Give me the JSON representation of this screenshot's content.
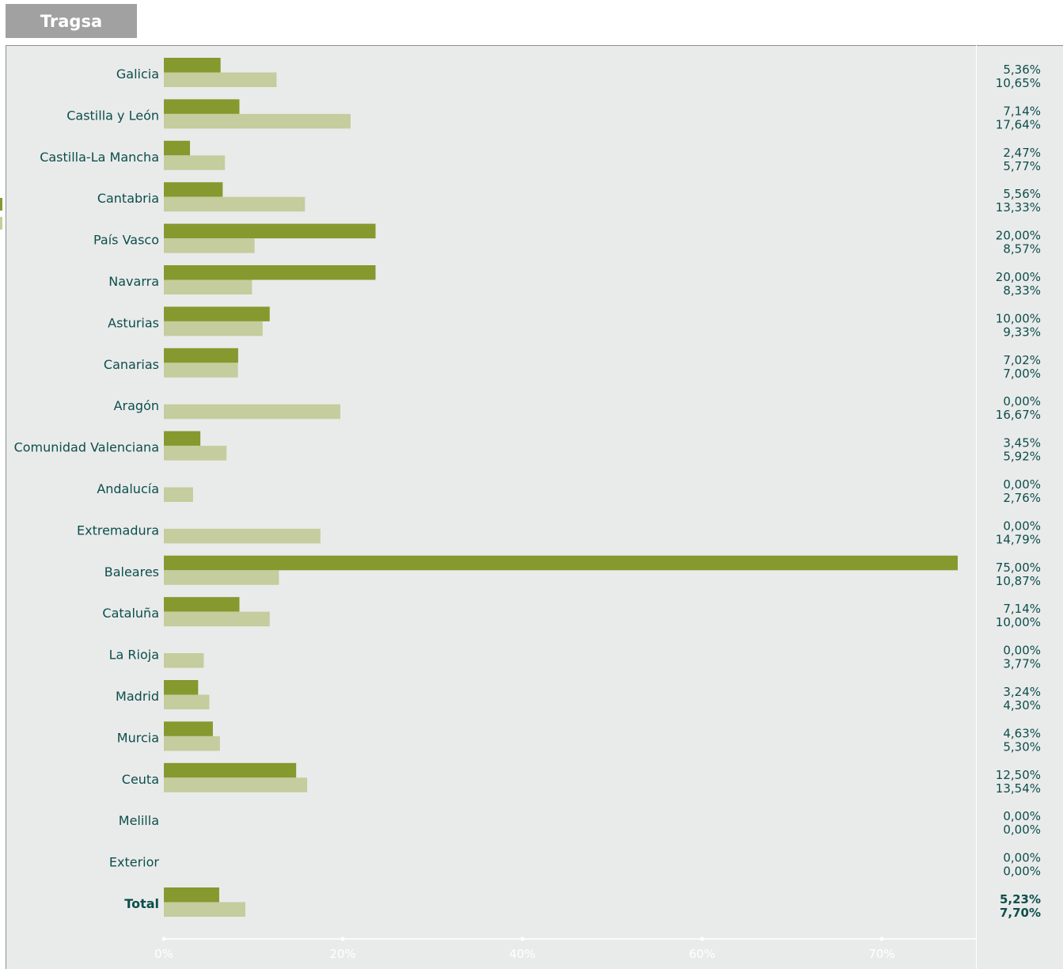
{
  "header": {
    "title": "Tragsa"
  },
  "colors": {
    "series1": "#85992f",
    "series2": "#c5cc9d",
    "panel": "#e9ebea",
    "text": "#0c4e4d",
    "axis": "#ffffff"
  },
  "chart_data": {
    "type": "bar",
    "orientation": "horizontal",
    "categories": [
      "Galicia",
      "Castilla y León",
      "Castilla-La Mancha",
      "Cantabria",
      "País Vasco",
      "Navarra",
      "Asturias",
      "Canarias",
      "Aragón",
      "Comunidad Valenciana",
      "Andalucía",
      "Extremadura",
      "Baleares",
      "Cataluña",
      "La Rioja",
      "Madrid",
      "Murcia",
      "Ceuta",
      "Melilla",
      "Exterior",
      "Total"
    ],
    "series": [
      {
        "values": [
          5.36,
          7.14,
          2.47,
          5.56,
          20.0,
          20.0,
          10.0,
          7.02,
          0.0,
          3.45,
          0.0,
          0.0,
          75.0,
          7.14,
          0.0,
          3.24,
          4.63,
          12.5,
          0.0,
          0.0,
          5.23
        ],
        "labels": [
          "5,36%",
          "7,14%",
          "2,47%",
          "5,56%",
          "20,00%",
          "20,00%",
          "10,00%",
          "7,02%",
          "0,00%",
          "3,45%",
          "0,00%",
          "0,00%",
          "75,00%",
          "7,14%",
          "0,00%",
          "3,24%",
          "4,63%",
          "12,50%",
          "0,00%",
          "0,00%",
          "5,23%"
        ]
      },
      {
        "values": [
          10.65,
          17.64,
          5.77,
          13.33,
          8.57,
          8.33,
          9.33,
          7.0,
          16.67,
          5.92,
          2.76,
          14.79,
          10.87,
          10.0,
          3.77,
          4.3,
          5.3,
          13.54,
          0.0,
          0.0,
          7.7
        ],
        "labels": [
          "10,65%",
          "17,64%",
          "5,77%",
          "13,33%",
          "8,57%",
          "8,33%",
          "9,33%",
          "7,00%",
          "16,67%",
          "5,92%",
          "2,76%",
          "14,79%",
          "10,87%",
          "10,00%",
          "3,77%",
          "4,30%",
          "5,30%",
          "13,54%",
          "0,00%",
          "0,00%",
          "7,70%"
        ]
      }
    ],
    "x_ticks": [
      0,
      20,
      40,
      60,
      70
    ],
    "x_tick_labels": [
      "0%",
      "20%",
      "40%",
      "60%",
      "70%"
    ],
    "xlim": [
      0,
      75
    ],
    "grid": false,
    "legend": "none"
  }
}
